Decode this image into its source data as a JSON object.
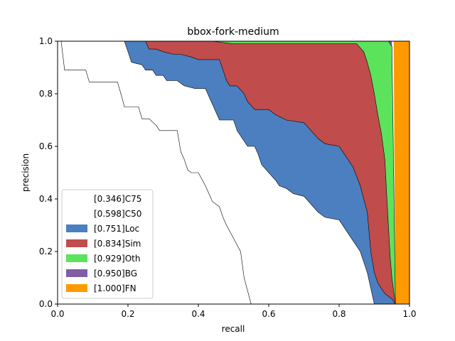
{
  "chart_data": {
    "type": "area",
    "title": "bbox-fork-medium",
    "xlabel": "recall",
    "ylabel": "precision",
    "xlim": [
      0,
      1
    ],
    "ylim": [
      0,
      1
    ],
    "xticks": [
      "0.0",
      "0.2",
      "0.4",
      "0.6",
      "0.8",
      "1.0"
    ],
    "yticks": [
      "0.0",
      "0.2",
      "0.4",
      "0.6",
      "0.8",
      "1.0"
    ],
    "grid": false,
    "legend_position": "lower-left",
    "series": [
      {
        "name": "[0.346]C75",
        "color": "#ffffff",
        "line_color": "#000000",
        "points": [
          [
            0.0,
            1.0
          ],
          [
            0.01,
            1.0
          ],
          [
            0.02,
            0.89
          ],
          [
            0.08,
            0.89
          ],
          [
            0.09,
            0.845
          ],
          [
            0.17,
            0.845
          ],
          [
            0.18,
            0.8
          ],
          [
            0.19,
            0.75
          ],
          [
            0.23,
            0.75
          ],
          [
            0.24,
            0.705
          ],
          [
            0.26,
            0.705
          ],
          [
            0.28,
            0.68
          ],
          [
            0.29,
            0.66
          ],
          [
            0.34,
            0.66
          ],
          [
            0.35,
            0.58
          ],
          [
            0.36,
            0.55
          ],
          [
            0.37,
            0.51
          ],
          [
            0.38,
            0.5
          ],
          [
            0.4,
            0.5
          ],
          [
            0.42,
            0.45
          ],
          [
            0.43,
            0.42
          ],
          [
            0.44,
            0.39
          ],
          [
            0.46,
            0.37
          ],
          [
            0.47,
            0.33
          ],
          [
            0.48,
            0.3
          ],
          [
            0.5,
            0.25
          ],
          [
            0.52,
            0.2
          ],
          [
            0.53,
            0.1
          ],
          [
            0.54,
            0.05
          ],
          [
            0.55,
            0.0
          ]
        ]
      },
      {
        "name": "[0.598]C50",
        "color": "#ffffff",
        "line_color": "#000000",
        "points": [
          [
            0.19,
            1.0
          ],
          [
            0.2,
            0.96
          ],
          [
            0.21,
            0.92
          ],
          [
            0.24,
            0.91
          ],
          [
            0.25,
            0.89
          ],
          [
            0.27,
            0.89
          ],
          [
            0.28,
            0.87
          ],
          [
            0.3,
            0.87
          ],
          [
            0.31,
            0.85
          ],
          [
            0.34,
            0.85
          ],
          [
            0.36,
            0.83
          ],
          [
            0.39,
            0.82
          ],
          [
            0.42,
            0.82
          ],
          [
            0.43,
            0.79
          ],
          [
            0.44,
            0.76
          ],
          [
            0.45,
            0.73
          ],
          [
            0.46,
            0.7
          ],
          [
            0.5,
            0.7
          ],
          [
            0.51,
            0.66
          ],
          [
            0.53,
            0.62
          ],
          [
            0.54,
            0.6
          ],
          [
            0.56,
            0.6
          ],
          [
            0.57,
            0.57
          ],
          [
            0.58,
            0.53
          ],
          [
            0.6,
            0.5
          ],
          [
            0.62,
            0.47
          ],
          [
            0.63,
            0.45
          ],
          [
            0.65,
            0.44
          ],
          [
            0.67,
            0.42
          ],
          [
            0.7,
            0.41
          ],
          [
            0.72,
            0.38
          ],
          [
            0.74,
            0.35
          ],
          [
            0.76,
            0.33
          ],
          [
            0.8,
            0.32
          ],
          [
            0.82,
            0.28
          ],
          [
            0.84,
            0.24
          ],
          [
            0.86,
            0.2
          ],
          [
            0.88,
            0.12
          ],
          [
            0.89,
            0.06
          ],
          [
            0.9,
            0.0
          ]
        ]
      },
      {
        "name": "[0.751]Loc",
        "color": "#4c7fbf",
        "line_color": "#000000",
        "points": [
          [
            0.25,
            1.0
          ],
          [
            0.26,
            0.97
          ],
          [
            0.28,
            0.97
          ],
          [
            0.3,
            0.96
          ],
          [
            0.33,
            0.95
          ],
          [
            0.35,
            0.95
          ],
          [
            0.38,
            0.94
          ],
          [
            0.4,
            0.93
          ],
          [
            0.46,
            0.93
          ],
          [
            0.47,
            0.89
          ],
          [
            0.48,
            0.85
          ],
          [
            0.49,
            0.83
          ],
          [
            0.51,
            0.83
          ],
          [
            0.53,
            0.8
          ],
          [
            0.54,
            0.77
          ],
          [
            0.56,
            0.74
          ],
          [
            0.6,
            0.74
          ],
          [
            0.62,
            0.72
          ],
          [
            0.65,
            0.7
          ],
          [
            0.7,
            0.69
          ],
          [
            0.72,
            0.66
          ],
          [
            0.74,
            0.63
          ],
          [
            0.76,
            0.61
          ],
          [
            0.8,
            0.6
          ],
          [
            0.82,
            0.56
          ],
          [
            0.84,
            0.52
          ],
          [
            0.86,
            0.45
          ],
          [
            0.88,
            0.35
          ],
          [
            0.89,
            0.2
          ],
          [
            0.9,
            0.12
          ],
          [
            0.91,
            0.08
          ],
          [
            0.93,
            0.04
          ],
          [
            0.95,
            0.02
          ],
          [
            0.96,
            0.0
          ]
        ]
      },
      {
        "name": "[0.834]Sim",
        "color": "#c04c4c",
        "line_color": "#000000",
        "points": [
          [
            0.26,
            1.0
          ],
          [
            0.3,
            1.0
          ],
          [
            0.38,
            1.0
          ],
          [
            0.44,
            1.0
          ],
          [
            0.5,
            0.99
          ],
          [
            0.55,
            0.99
          ],
          [
            0.6,
            0.99
          ],
          [
            0.65,
            0.99
          ],
          [
            0.7,
            0.99
          ],
          [
            0.75,
            0.99
          ],
          [
            0.8,
            0.99
          ],
          [
            0.85,
            0.99
          ],
          [
            0.87,
            0.96
          ],
          [
            0.88,
            0.92
          ],
          [
            0.89,
            0.87
          ],
          [
            0.9,
            0.8
          ],
          [
            0.91,
            0.72
          ],
          [
            0.92,
            0.65
          ],
          [
            0.93,
            0.55
          ],
          [
            0.935,
            0.42
          ],
          [
            0.94,
            0.3
          ],
          [
            0.945,
            0.18
          ],
          [
            0.95,
            0.1
          ],
          [
            0.96,
            0.0
          ]
        ]
      },
      {
        "name": "[0.929]Oth",
        "color": "#5ce35c",
        "line_color": "#000000",
        "points": [
          [
            0.26,
            1.0
          ],
          [
            0.5,
            1.0
          ],
          [
            0.7,
            1.0
          ],
          [
            0.85,
            1.0
          ],
          [
            0.9,
            1.0
          ],
          [
            0.92,
            1.0
          ],
          [
            0.94,
            1.0
          ],
          [
            0.95,
            0.98
          ],
          [
            0.955,
            0.5
          ],
          [
            0.96,
            0.0
          ]
        ]
      },
      {
        "name": "[0.950]BG",
        "color": "#7f5fa8",
        "line_color": "#000000",
        "points": [
          [
            0.95,
            1.0
          ],
          [
            0.95,
            0.0
          ]
        ]
      },
      {
        "name": "[1.000]FN",
        "color": "#ff9a00",
        "line_color": "#000000",
        "points": [
          [
            0.955,
            1.0
          ],
          [
            1.0,
            1.0
          ],
          [
            1.0,
            0.0
          ],
          [
            0.96,
            0.0
          ]
        ]
      }
    ]
  }
}
